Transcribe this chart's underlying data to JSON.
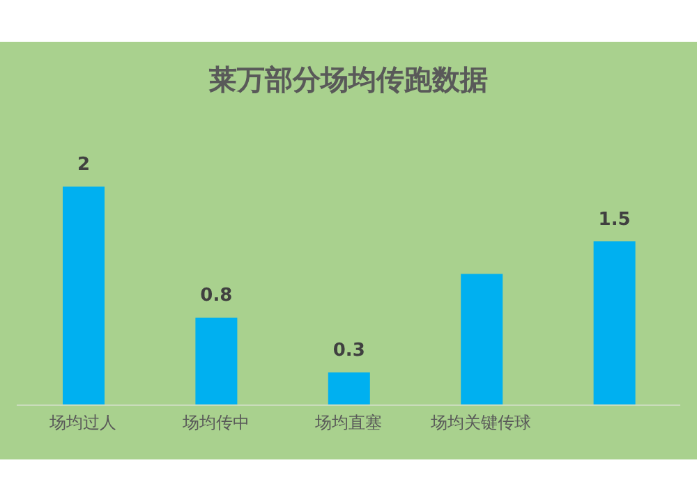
{
  "chart_data": {
    "type": "bar",
    "title": "莱万部分场均传跑数据",
    "categories": [
      "场均过人",
      "场均传中",
      "场均直塞",
      "场均关键传球",
      null
    ],
    "values": [
      2,
      0.8,
      0.3,
      1.2,
      1.5
    ],
    "value_labels": [
      "2",
      "0.8",
      "0.3",
      null,
      "1.5"
    ],
    "color": "#00b0f0"
  }
}
